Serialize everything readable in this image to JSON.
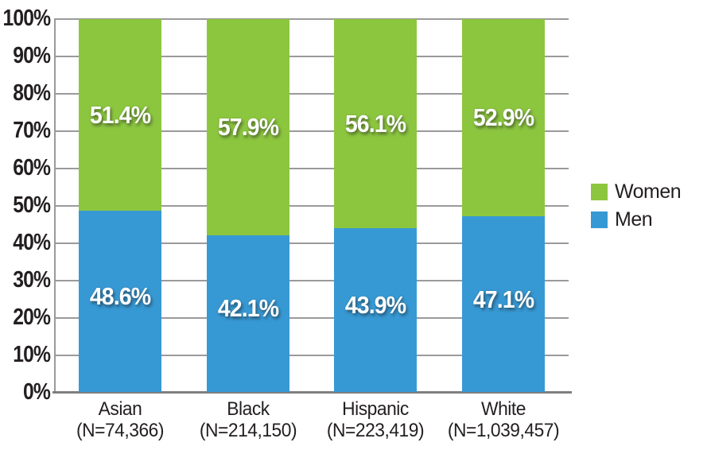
{
  "chart_data": {
    "type": "bar",
    "subtype": "stacked-100-percent",
    "categories": [
      "Asian",
      "Black",
      "Hispanic",
      "White"
    ],
    "category_sublabels": [
      "(N=74,366)",
      "(N=214,150)",
      "(N=223,419)",
      "(N=1,039,457)"
    ],
    "series": [
      {
        "name": "Women",
        "color": "#8CC63F",
        "values": [
          51.4,
          57.9,
          56.1,
          52.9
        ],
        "labels": [
          "51.4%",
          "57.9%",
          "56.1%",
          "52.9%"
        ]
      },
      {
        "name": "Men",
        "color": "#3799D4",
        "values": [
          48.6,
          42.1,
          43.9,
          47.1
        ],
        "labels": [
          "48.6%",
          "42.1%",
          "43.9%",
          "47.1%"
        ]
      }
    ],
    "y_ticks": [
      "100%",
      "90%",
      "80%",
      "70%",
      "60%",
      "50%",
      "40%",
      "30%",
      "20%",
      "10%",
      "0%"
    ],
    "ylim": [
      0,
      100
    ],
    "grid": true,
    "legend_position": "right",
    "title": "",
    "xlabel": "",
    "ylabel": ""
  },
  "colors": {
    "background": "#ffffff",
    "gridline": "#9A9A9A",
    "axis": "#7F7F7F",
    "text": "#231F20",
    "bar_value_text": "#ffffff"
  }
}
